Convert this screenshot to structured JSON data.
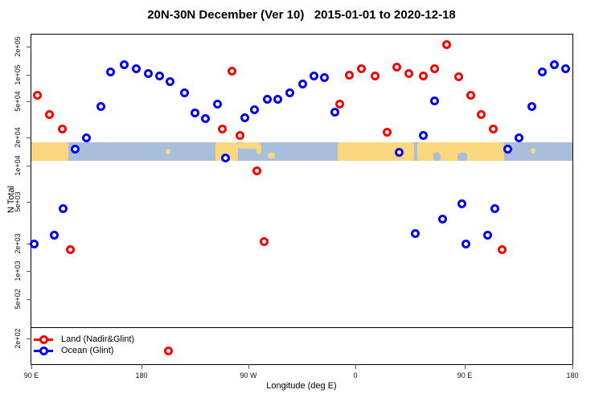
{
  "chart_data": {
    "type": "scatter",
    "title": "20N-30N December (Ver 10)   2015-01-01 to 2020-12-18",
    "xlabel": "Longitude (deg E)",
    "ylabel": "N Total",
    "y_scale": "log",
    "x_axis_note": "longitude wraps: axis spans 90E eastward through 180, 90W, 0, 90E to 180 (450 deg continuous)",
    "x_ticks": [
      {
        "lon": 90,
        "label": "90 E"
      },
      {
        "lon": 180,
        "label": "180"
      },
      {
        "lon": 270,
        "label": "90 W"
      },
      {
        "lon": 360,
        "label": "0"
      },
      {
        "lon": 450,
        "label": "90 E"
      },
      {
        "lon": 540,
        "label": "180"
      }
    ],
    "y_ticks": [
      {
        "value": 200000,
        "label": "2e+05"
      },
      {
        "value": 100000,
        "label": "1e+05"
      },
      {
        "value": 50000,
        "label": "5e+04"
      },
      {
        "value": 20000,
        "label": "2e+04"
      },
      {
        "value": 10000,
        "label": "1e+04"
      },
      {
        "value": 5000,
        "label": "5e+03"
      },
      {
        "value": 2000,
        "label": "2e+03"
      },
      {
        "value": 1000,
        "label": "1e+03"
      },
      {
        "value": 500,
        "label": "5e+02"
      },
      {
        "value": 200,
        "label": "2e+02"
      }
    ],
    "legend": {
      "position": "bottom-left"
    },
    "series": [
      {
        "name": "Land (Nadir&Glint)",
        "color": "#ff0000",
        "points": [
          {
            "lon": 95,
            "v": 59000
          },
          {
            "lon": 105,
            "v": 36000
          },
          {
            "lon": 115,
            "v": 25000
          },
          {
            "lon": 122,
            "v": 1700
          },
          {
            "lon": 203,
            "v": 150
          },
          {
            "lon": 248,
            "v": 25000
          },
          {
            "lon": 256,
            "v": 110000
          },
          {
            "lon": 263,
            "v": 21000
          },
          {
            "lon": 277,
            "v": 9000
          },
          {
            "lon": 283,
            "v": 2100
          },
          {
            "lon": 347,
            "v": 47000
          },
          {
            "lon": 355,
            "v": 98000
          },
          {
            "lon": 365,
            "v": 115000
          },
          {
            "lon": 376,
            "v": 96000
          },
          {
            "lon": 386,
            "v": 23000
          },
          {
            "lon": 394,
            "v": 120000
          },
          {
            "lon": 404,
            "v": 104000
          },
          {
            "lon": 416,
            "v": 96000
          },
          {
            "lon": 425,
            "v": 115000
          },
          {
            "lon": 435,
            "v": 210000
          },
          {
            "lon": 445,
            "v": 94000
          },
          {
            "lon": 455,
            "v": 59000
          },
          {
            "lon": 464,
            "v": 36000
          },
          {
            "lon": 474,
            "v": 25000
          },
          {
            "lon": 481,
            "v": 1700
          }
        ]
      },
      {
        "name": "Ocean (Glint)",
        "color": "#0000ff",
        "points": [
          {
            "lon": 92,
            "v": 2000
          },
          {
            "lon": 109,
            "v": 2400
          },
          {
            "lon": 116,
            "v": 4300
          },
          {
            "lon": 126,
            "v": 15000
          },
          {
            "lon": 135,
            "v": 20000
          },
          {
            "lon": 147,
            "v": 44000
          },
          {
            "lon": 155,
            "v": 108000
          },
          {
            "lon": 166,
            "v": 127000
          },
          {
            "lon": 176,
            "v": 115000
          },
          {
            "lon": 186,
            "v": 104000
          },
          {
            "lon": 195,
            "v": 96000
          },
          {
            "lon": 204,
            "v": 83000
          },
          {
            "lon": 216,
            "v": 62000
          },
          {
            "lon": 225,
            "v": 37000
          },
          {
            "lon": 234,
            "v": 32000
          },
          {
            "lon": 244,
            "v": 47000
          },
          {
            "lon": 251,
            "v": 12000
          },
          {
            "lon": 267,
            "v": 33000
          },
          {
            "lon": 275,
            "v": 40000
          },
          {
            "lon": 286,
            "v": 53000
          },
          {
            "lon": 295,
            "v": 53000
          },
          {
            "lon": 305,
            "v": 62000
          },
          {
            "lon": 316,
            "v": 78000
          },
          {
            "lon": 325,
            "v": 96000
          },
          {
            "lon": 334,
            "v": 92000
          },
          {
            "lon": 343,
            "v": 38000
          },
          {
            "lon": 396,
            "v": 14000
          },
          {
            "lon": 409,
            "v": 2500
          },
          {
            "lon": 416,
            "v": 21000
          },
          {
            "lon": 425,
            "v": 51000
          },
          {
            "lon": 432,
            "v": 3400
          },
          {
            "lon": 448,
            "v": 4800
          },
          {
            "lon": 451,
            "v": 2000
          },
          {
            "lon": 469,
            "v": 2400
          },
          {
            "lon": 475,
            "v": 4300
          },
          {
            "lon": 486,
            "v": 15000
          },
          {
            "lon": 495,
            "v": 20000
          },
          {
            "lon": 506,
            "v": 44000
          },
          {
            "lon": 515,
            "v": 108000
          },
          {
            "lon": 525,
            "v": 127000
          },
          {
            "lon": 534,
            "v": 115000
          }
        ]
      }
    ],
    "map_band": {
      "note": "horizontal strip showing land (tan) and ocean (blue) along the 20N-30N latitude belt",
      "ocean_color": "#a9bedb",
      "land_color": "#fbd880",
      "v_top": 17800,
      "v_bottom": 11300,
      "land_segments": [
        {
          "from": 90,
          "to": 120.5
        },
        {
          "from": 200.5,
          "to": 204.5,
          "top": 0.35,
          "h": 0.3
        },
        {
          "from": 242,
          "to": 261.5
        },
        {
          "from": 261.5,
          "to": 280,
          "top": 0,
          "h": 0.35
        },
        {
          "from": 276.5,
          "to": 280.5,
          "top": 0.1,
          "h": 0.55
        },
        {
          "from": 286,
          "to": 292,
          "top": 0.55,
          "h": 0.3
        },
        {
          "from": 345,
          "to": 408
        },
        {
          "from": 411,
          "to": 483
        },
        {
          "from": 424,
          "to": 430,
          "top": 0.55,
          "h": 0.45,
          "cut": true
        },
        {
          "from": 444,
          "to": 452,
          "top": 0.55,
          "h": 0.45,
          "cut": true
        },
        {
          "from": 505,
          "to": 509,
          "top": 0.3,
          "h": 0.3
        }
      ]
    }
  }
}
